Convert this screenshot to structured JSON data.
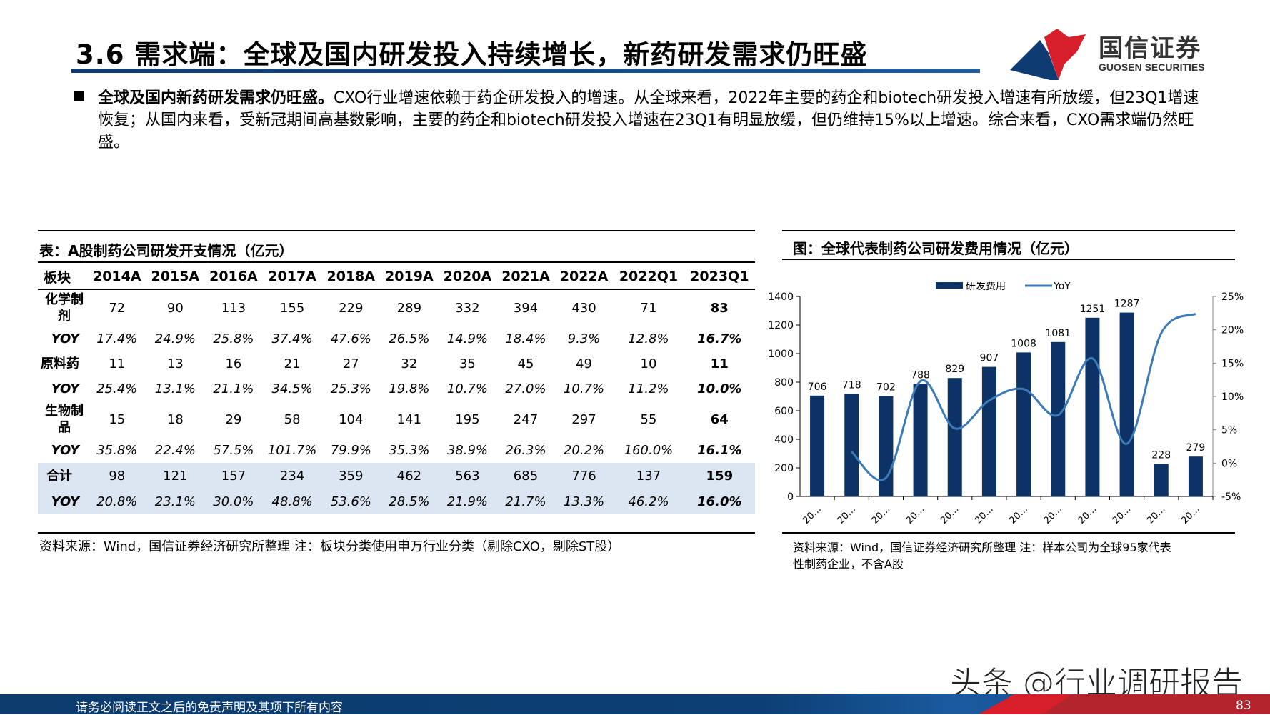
{
  "title": "3.6 需求端：全球及国内研发投入持续增长，新药研发需求仍旺盛",
  "logo": {
    "cn": "国信证券",
    "en": "GUOSEN SECURITIES",
    "colors": {
      "red": "#d71f2b",
      "blue": "#0d3b72"
    }
  },
  "paragraph": {
    "lead": "全球及国内新药研发需求仍旺盛。",
    "body": "CXO行业增速依赖于药企研发投入的增速。从全球来看，2022年主要的药企和biotech研发投入增速有所放缓，但23Q1增速恢复；从国内来看，受新冠期间高基数影响，主要的药企和biotech研发投入增速在23Q1有明显放缓，但仍维持15%以上增速。综合来看，CXO需求端仍然旺盛。"
  },
  "table": {
    "caption": "表：A股制药公司研发开支情况（亿元）",
    "headers": [
      "板块",
      "2014A",
      "2015A",
      "2016A",
      "2017A",
      "2018A",
      "2019A",
      "2020A",
      "2021A",
      "2022A",
      "2022Q1",
      "2023Q1"
    ],
    "rows": [
      {
        "label": "化学制剂",
        "values": [
          "72",
          "90",
          "113",
          "155",
          "229",
          "289",
          "332",
          "394",
          "430",
          "71",
          "83"
        ],
        "type": "val"
      },
      {
        "label": "YOY",
        "values": [
          "17.4%",
          "24.9%",
          "25.8%",
          "37.4%",
          "47.6%",
          "26.5%",
          "14.9%",
          "18.4%",
          "9.3%",
          "12.8%",
          "16.7%"
        ],
        "type": "yoy"
      },
      {
        "label": "原料药",
        "values": [
          "11",
          "13",
          "16",
          "21",
          "27",
          "32",
          "35",
          "45",
          "49",
          "10",
          "11"
        ],
        "type": "one"
      },
      {
        "label": "YOY",
        "values": [
          "25.4%",
          "13.1%",
          "21.1%",
          "34.5%",
          "25.3%",
          "19.8%",
          "10.7%",
          "27.0%",
          "10.7%",
          "11.2%",
          "10.0%"
        ],
        "type": "yoy"
      },
      {
        "label": "生物制品",
        "values": [
          "15",
          "18",
          "29",
          "58",
          "104",
          "141",
          "195",
          "247",
          "297",
          "55",
          "64"
        ],
        "type": "val"
      },
      {
        "label": "YOY",
        "values": [
          "35.8%",
          "22.4%",
          "57.5%",
          "101.7%",
          "79.9%",
          "35.3%",
          "38.9%",
          "26.3%",
          "20.2%",
          "160.0%",
          "16.1%"
        ],
        "type": "yoy"
      },
      {
        "label": "合计",
        "values": [
          "98",
          "121",
          "157",
          "234",
          "359",
          "462",
          "563",
          "685",
          "776",
          "137",
          "159"
        ],
        "type": "tot"
      },
      {
        "label": "YOY",
        "values": [
          "20.8%",
          "23.1%",
          "30.0%",
          "48.8%",
          "53.6%",
          "28.5%",
          "21.9%",
          "21.7%",
          "13.3%",
          "46.2%",
          "16.0%"
        ],
        "type": "tot yoy"
      }
    ],
    "source": "资料来源：Wind，国信证券经济研究所整理 注：板块分类使用申万行业分类（剔除CXO，剔除ST股）",
    "highlight_color": "#dce6f2"
  },
  "chart_caption": "图：全球代表制药公司研发费用情况（亿元）",
  "chart_source": [
    "资料来源：Wind，国信证券经济研究所整理 注：样本公司为全球95家代表",
    "性制药企业，不含A股"
  ],
  "chart_data": {
    "type": "bar+line",
    "categories": [
      "20…",
      "20…",
      "20…",
      "20…",
      "20…",
      "20…",
      "20…",
      "20…",
      "20…",
      "20…",
      "20…",
      "20…"
    ],
    "series": [
      {
        "name": "研发费用",
        "type": "bar",
        "axis": "left",
        "color": "#0d3366",
        "values": [
          706,
          718,
          702,
          788,
          829,
          907,
          1008,
          1081,
          1251,
          1287,
          228,
          279
        ]
      },
      {
        "name": "YoY",
        "type": "line",
        "axis": "right",
        "color": "#3d7ab8",
        "values": [
          null,
          1.7,
          -2.2,
          12.3,
          5.2,
          9.4,
          11.1,
          7.2,
          15.7,
          2.9,
          19.5,
          22.4
        ]
      }
    ],
    "ylim_left": [
      0,
      1400
    ],
    "yticks_left": [
      "0",
      "200",
      "400",
      "600",
      "800",
      "1000",
      "1200",
      "1400"
    ],
    "ylim_right": [
      -5,
      25
    ],
    "yticks_right": [
      "-5%",
      "0%",
      "5%",
      "10%",
      "15%",
      "20%",
      "25%"
    ],
    "legend": "top-center",
    "grid": false
  },
  "footer": {
    "disclaimer": "请务必阅读正文之后的免责声明及其项下所有内容",
    "page": "83"
  },
  "watermark": "头条 @行业调研报告"
}
